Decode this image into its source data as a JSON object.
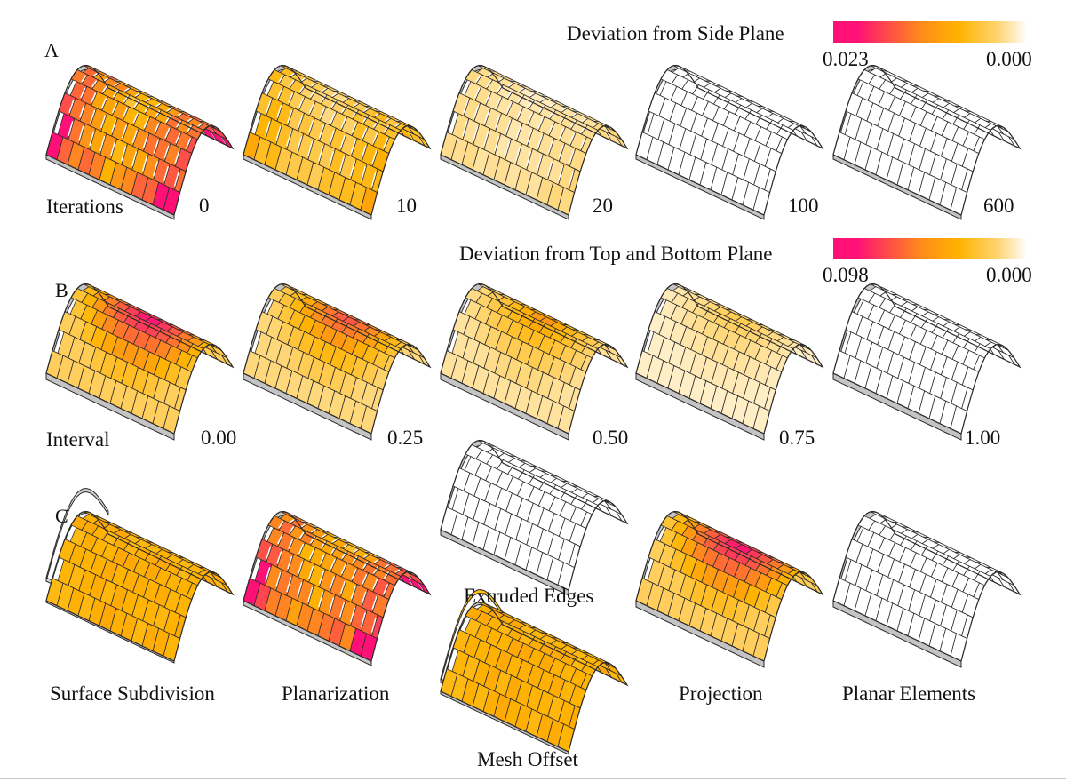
{
  "colors": {
    "high": "#ff1077",
    "mid": "#ffb300",
    "low": "#ffffff",
    "edge": "#2b2b2b",
    "side": "#c4c4c4"
  },
  "panels": {
    "a": {
      "letter": "A",
      "legend": {
        "title": "Deviation from Side Plane",
        "max_label": "0.023",
        "min_label": "0.000"
      },
      "row_label": "Iterations",
      "values": [
        "0",
        "10",
        "20",
        "100",
        "600"
      ]
    },
    "b": {
      "letter": "B",
      "legend": {
        "title": "Deviation from Top and Bottom Plane",
        "max_label": "0.098",
        "min_label": "0.000"
      },
      "row_label": "Interval",
      "values": [
        "0.00",
        "0.25",
        "0.50",
        "0.75",
        "1.00"
      ]
    },
    "c": {
      "letter": "C",
      "steps": [
        "Surface Subdivision",
        "Planarization",
        "Extruded Edges",
        "Mesh Offset",
        "Projection",
        "Planar Elements"
      ]
    }
  }
}
